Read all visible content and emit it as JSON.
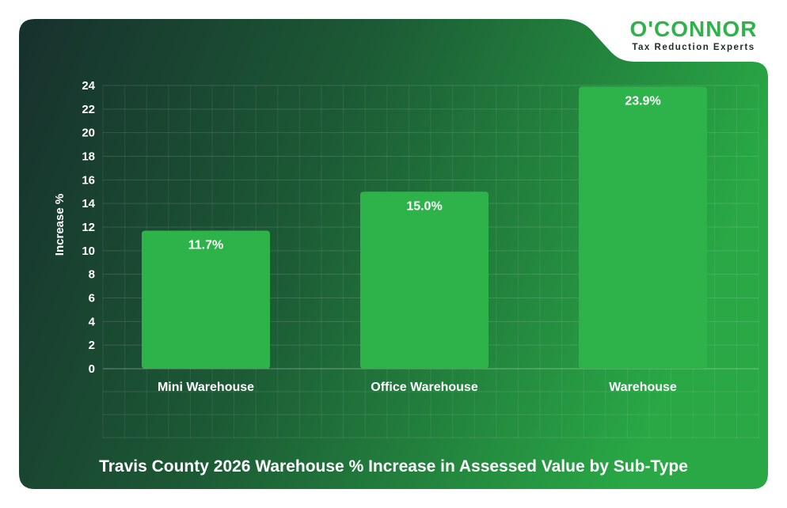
{
  "brand": {
    "name": "O'CONNOR",
    "tagline": "Tax Reduction Experts"
  },
  "colors": {
    "bar": "#2db34a",
    "card_dark": "#17332f",
    "card_light": "#2aa646",
    "text": "#ffffff",
    "brand": "#2db34a"
  },
  "chart_data": {
    "type": "bar",
    "title": "Travis County 2026 Warehouse % Increase in Assessed Value by Sub-Type",
    "xlabel": "",
    "ylabel": "Increase %",
    "categories": [
      "Mini Warehouse",
      "Office Warehouse",
      "Warehouse"
    ],
    "values": [
      11.7,
      15.0,
      23.9
    ],
    "value_labels": [
      "11.7%",
      "15.0%",
      "23.9%"
    ],
    "ylim": [
      0,
      24
    ],
    "yticks": [
      0,
      2,
      4,
      6,
      8,
      10,
      12,
      14,
      16,
      18,
      20,
      22,
      24
    ],
    "grid": true,
    "legend": "none"
  }
}
